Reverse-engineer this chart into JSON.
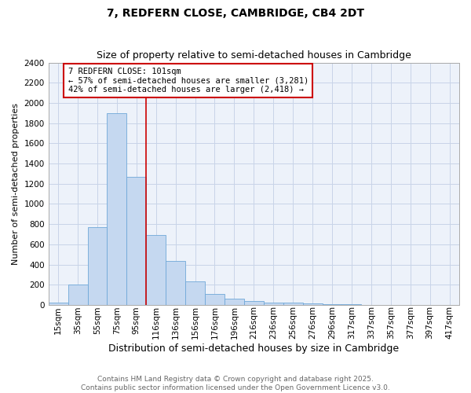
{
  "title1": "7, REDFERN CLOSE, CAMBRIDGE, CB4 2DT",
  "title2": "Size of property relative to semi-detached houses in Cambridge",
  "xlabel": "Distribution of semi-detached houses by size in Cambridge",
  "ylabel": "Number of semi-detached properties",
  "categories": [
    "15sqm",
    "35sqm",
    "55sqm",
    "75sqm",
    "95sqm",
    "116sqm",
    "136sqm",
    "156sqm",
    "176sqm",
    "196sqm",
    "216sqm",
    "236sqm",
    "256sqm",
    "276sqm",
    "296sqm",
    "317sqm",
    "337sqm",
    "357sqm",
    "377sqm",
    "397sqm",
    "417sqm"
  ],
  "values": [
    25,
    200,
    770,
    1900,
    1270,
    690,
    435,
    230,
    105,
    60,
    35,
    25,
    20,
    15,
    8,
    5,
    3,
    2,
    1,
    0,
    0
  ],
  "bar_color": "#c5d8f0",
  "bar_edge_color": "#6fa8d8",
  "annotation_title": "7 REDFERN CLOSE: 101sqm",
  "annotation_line1": "← 57% of semi-detached houses are smaller (3,281)",
  "annotation_line2": "42% of semi-detached houses are larger (2,418) →",
  "annotation_box_color": "#ffffff",
  "annotation_box_edge_color": "#cc0000",
  "vline_color": "#cc0000",
  "grid_color": "#c8d4e8",
  "plot_bg_color": "#edf2fa",
  "footer_line1": "Contains HM Land Registry data © Crown copyright and database right 2025.",
  "footer_line2": "Contains public sector information licensed under the Open Government Licence v3.0.",
  "ylim": [
    0,
    2400
  ],
  "yticks": [
    0,
    200,
    400,
    600,
    800,
    1000,
    1200,
    1400,
    1600,
    1800,
    2000,
    2200,
    2400
  ],
  "red_line_bin": 4,
  "title1_fontsize": 10,
  "title2_fontsize": 9,
  "ylabel_fontsize": 8,
  "xlabel_fontsize": 9,
  "tick_fontsize": 7.5,
  "annotation_fontsize": 7.5,
  "footer_fontsize": 6.5
}
